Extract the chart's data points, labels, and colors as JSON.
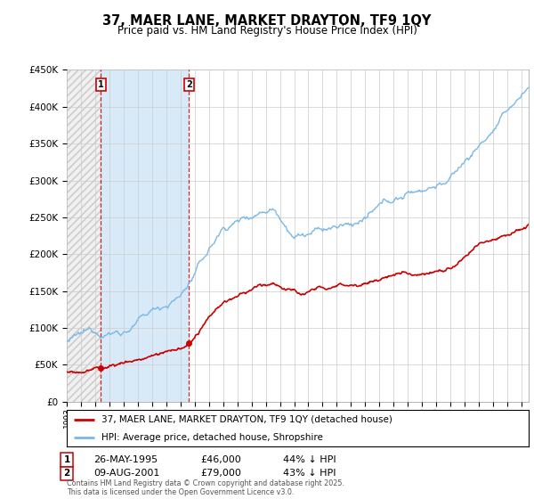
{
  "title": "37, MAER LANE, MARKET DRAYTON, TF9 1QY",
  "subtitle": "Price paid vs. HM Land Registry's House Price Index (HPI)",
  "ylim": [
    0,
    450000
  ],
  "yticks": [
    0,
    50000,
    100000,
    150000,
    200000,
    250000,
    300000,
    350000,
    400000,
    450000
  ],
  "xlim": [
    1993,
    2025.5
  ],
  "legend_line1": "37, MAER LANE, MARKET DRAYTON, TF9 1QY (detached house)",
  "legend_line2": "HPI: Average price, detached house, Shropshire",
  "footer": "Contains HM Land Registry data © Crown copyright and database right 2025.\nThis data is licensed under the Open Government Licence v3.0.",
  "purchase1": {
    "label": "1",
    "date": "26-MAY-1995",
    "price": 46000,
    "note": "44% ↓ HPI",
    "x": 1995.4
  },
  "purchase2": {
    "label": "2",
    "date": "09-AUG-2001",
    "price": 79000,
    "note": "43% ↓ HPI",
    "x": 2001.6
  },
  "hpi_color": "#7ab8e8",
  "price_color": "#cc0000",
  "hatch_color": "#c8c8c8",
  "shade_color": "#d8eaf8",
  "background_color": "#f0f0f0",
  "grid_color": "#cccccc"
}
